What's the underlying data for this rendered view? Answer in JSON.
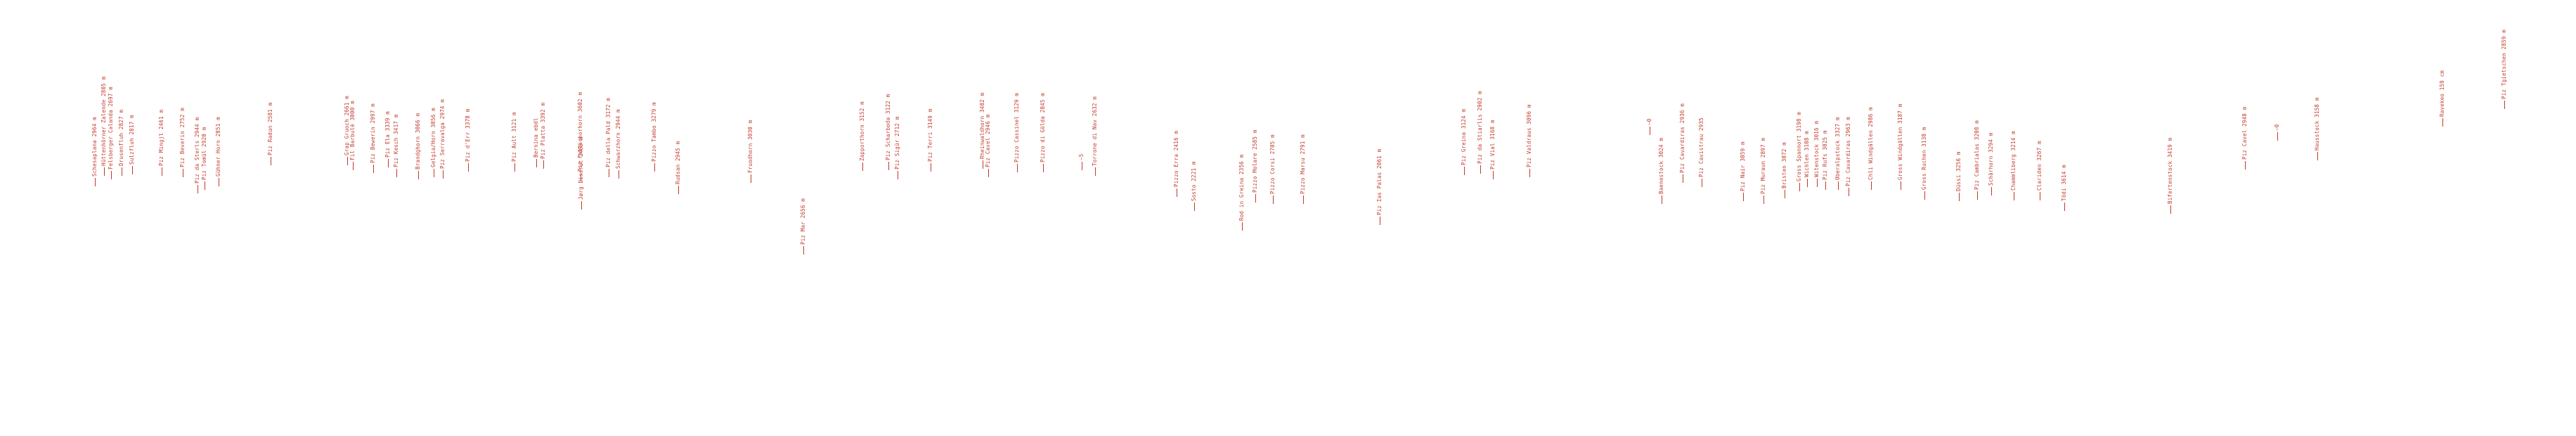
{
  "labels": [
    {
      "text": "Schesaplana 2964 m"
    },
    {
      "text": "Hüttenhörner Zalende 2805 m"
    },
    {
      "text": "Felsberger Calanda 2697 m"
    },
    {
      "text": "Drusenfluh 2827 m"
    },
    {
      "text": "Sulzfluh 2817 m"
    },
    {
      "text": "Piz Mingjl 2461 m"
    },
    {
      "text": "Piz Beverin 2752 m"
    },
    {
      "text": "Piz da Sterls 2944 m"
    },
    {
      "text": "Piz Tomül 2920 m"
    },
    {
      "text": "Gühner Horn 2851 m"
    },
    {
      "text": "Piz Radun 2581 m"
    },
    {
      "text": "Grap Gruoch 2661 m"
    },
    {
      "text": "Fil Barbulé 3000 m"
    },
    {
      "text": "Piz Bewerin 2997 m"
    },
    {
      "text": "Piz Ela 3339 m"
    },
    {
      "text": "Piz Kesch 3417 m"
    },
    {
      "text": "Brandghorn 3066 m"
    },
    {
      "text": "Gelgia/Horn 3056 m"
    },
    {
      "text": "Piz Serravalga 2974 m"
    },
    {
      "text": "Piz d'Err 3378 m"
    },
    {
      "text": "Piz Ault 3121 m"
    },
    {
      "text": "Bernina ebdl"
    },
    {
      "text": "Piz Platta 3392 m"
    },
    {
      "text": "Jørg Dissrut 2469 m"
    },
    {
      "text": "Piz Fallschorhorn 3602 m"
    },
    {
      "text": "Piz della Pald 3172 m"
    },
    {
      "text": "Schwarzhorn 2944 m"
    },
    {
      "text": "Pizzo Tambo 3279 m"
    },
    {
      "text": "Rudsan 2945 m"
    },
    {
      "text": "Fruodhorn 3030 m"
    },
    {
      "text": "Piz Mar 2656 m"
    },
    {
      "text": "Zapporthorn 3152 m"
    },
    {
      "text": "Piz Scharboda 3122 m"
    },
    {
      "text": "Piz Sigür 2712 m"
    },
    {
      "text": "Piz Terri 3149 m"
    },
    {
      "text": "Rheinwaldhorn 3402 m"
    },
    {
      "text": "Piz Cavel 2946 m"
    },
    {
      "text": "Pizzo Cassinel 3129 m"
    },
    {
      "text": "Pizzo di Gölda 2845 m"
    },
    {
      "text": "—5"
    },
    {
      "text": "Torrone di Nav 2632 m"
    },
    {
      "text": "Pizzo Erra 2416 m"
    },
    {
      "text": "Sosto 2221 m"
    },
    {
      "text": "Rod in Greina 2356 m"
    },
    {
      "text": "Pizzo Molare 2585 m"
    },
    {
      "text": "Pizzo Corsi 2705 m"
    },
    {
      "text": "Pizzo Marsu 2791 m"
    },
    {
      "text": "Piz Ias Palas 2061 m"
    },
    {
      "text": "Piz Greina 3124 m"
    },
    {
      "text": "Piz da Stiarlis 2902 m"
    },
    {
      "text": "Piz Vial 3168 m"
    },
    {
      "text": "Piz Valdraus 3096 m"
    },
    {
      "text": "—0"
    },
    {
      "text": "Baenestock 3024 m"
    },
    {
      "text": "Piz Cavardiras 2936 m"
    },
    {
      "text": "Piz Cavistrau 2935"
    },
    {
      "text": "Piz Nair 3059 m"
    },
    {
      "text": "Piz Muraun 2897 m"
    },
    {
      "text": "Bristen 3072 m"
    },
    {
      "text": "Gross Spannort 3198 m"
    },
    {
      "text": "Wichlen 3108 m"
    },
    {
      "text": "Witenstock 3016 m"
    },
    {
      "text": "Piz Rufs 3025 m"
    },
    {
      "text": "Oberalpstock 3327 m"
    },
    {
      "text": "Piz Cavardiras 2963 m"
    },
    {
      "text": "Chli Windgällen 2986 m"
    },
    {
      "text": "Gross Windgällen 3187 m"
    },
    {
      "text": "Gross Ruchen 3138 m"
    },
    {
      "text": "Düssi 3256 m"
    },
    {
      "text": "Piz Cambrialas 3208 m"
    },
    {
      "text": "Schärhorn 3294 m"
    },
    {
      "text": "Chammliberg 3214 m"
    },
    {
      "text": "Clariden 3267 m"
    },
    {
      "text": "Tödi 3614 m"
    },
    {
      "text": "Bifertenstock 3419 m"
    },
    {
      "text": "Piz Cavel 2948 m"
    },
    {
      "text": "—0"
    },
    {
      "text": "Hausstock 3158 m"
    },
    {
      "text": "Ravekeo 159 cm"
    },
    {
      "text": "Piz Tgietschen 2859 m"
    }
  ]
}
